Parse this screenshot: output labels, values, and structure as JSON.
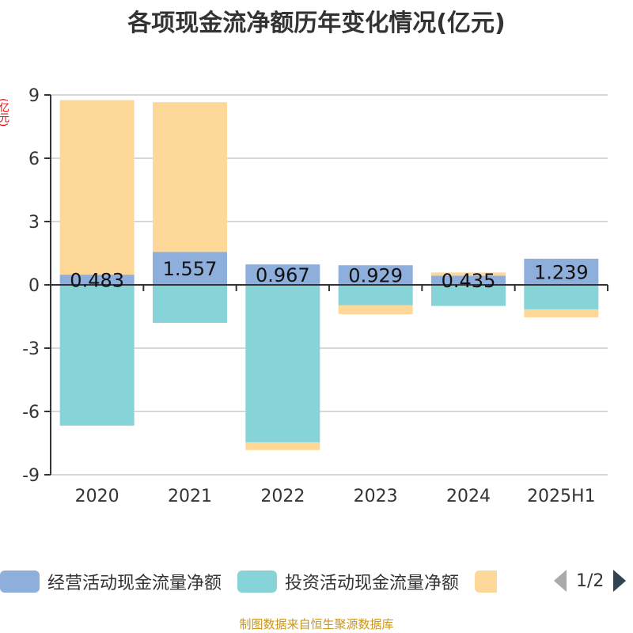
{
  "chart_data": {
    "type": "bar",
    "stacked": true,
    "title": "各项现金流净额历年变化情况(亿元)",
    "ylabel": "(亿元)",
    "ylim": [
      -9,
      9
    ],
    "yticks": [
      -9,
      -6,
      -3,
      0,
      3,
      6,
      9
    ],
    "grid": true,
    "categories": [
      "2020",
      "2021",
      "2022",
      "2023",
      "2024",
      "2025H1"
    ],
    "series": [
      {
        "name": "经营活动现金流量净额",
        "color": "#8eaedb",
        "values": [
          0.483,
          1.557,
          0.967,
          0.929,
          0.435,
          1.239
        ],
        "labels": true
      },
      {
        "name": "投资活动现金流量净额",
        "color": "#86d4d8",
        "values": [
          -6.67,
          -1.8,
          -7.46,
          -0.97,
          -1.0,
          -1.16
        ]
      },
      {
        "name": "",
        "color": "#fdd899",
        "values": [
          8.27,
          7.1,
          -0.37,
          -0.42,
          0.15,
          -0.38
        ]
      }
    ],
    "legend": "bottom",
    "legend_page": "1/2"
  },
  "source": "制图数据来自恒生聚源数据库"
}
